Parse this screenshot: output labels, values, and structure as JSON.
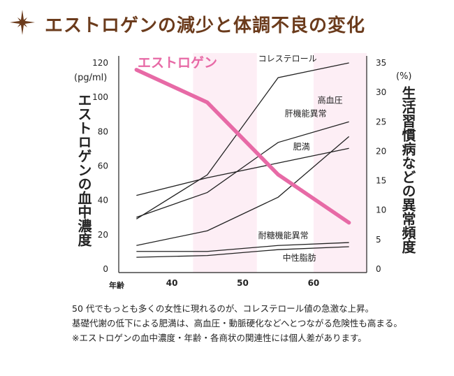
{
  "title": "エストロゲンの減少と体調不良の変化",
  "left_unit": "(pg/ml)",
  "right_unit": "(%)",
  "left_axis_label": "エストロゲンの血中濃度",
  "right_axis_label": "生活習慣病などの異常頻度",
  "notes": [
    "50 代でもっとも多くの女性に現れるのが、コレステロール値の急激な上昇。",
    "基礎代謝の低下による肥満は、高血圧・動脈硬化などへとつながる危険性も高まる。",
    "※エストロゲンの血中濃度・年齢・各商状の関連性には個人差があります。"
  ],
  "colors": {
    "title": "#6b3b1c",
    "estrogen": "#e76aa6",
    "band": "#fdeef5",
    "line": "#222222"
  },
  "chart_data": {
    "type": "line",
    "xlabel": "年齢",
    "x": [
      35,
      45,
      55,
      65
    ],
    "x_ticks": [
      "40",
      "50",
      "60"
    ],
    "x_tick_values": [
      40,
      50,
      60
    ],
    "xlim": [
      32.5,
      67.5
    ],
    "ylim_left": [
      0,
      120
    ],
    "ylim_right": [
      0,
      35
    ],
    "left_ticks": [
      "0",
      "20",
      "40",
      "60",
      "80",
      "100",
      "120"
    ],
    "right_ticks": [
      "0",
      "5",
      "10",
      "15",
      "20",
      "25",
      "30",
      "35"
    ],
    "shaded_age_ranges": [
      [
        43,
        52
      ],
      [
        60,
        67.5
      ]
    ],
    "estrogen": {
      "name": "エストロゲン",
      "axis": "left",
      "values": [
        116,
        97,
        55,
        27
      ]
    },
    "series": [
      {
        "name": "コレステロール",
        "axis": "right",
        "values": [
          8.5,
          16,
          32.5,
          35
        ]
      },
      {
        "name": "肝機能異常",
        "axis": "right",
        "values": [
          8.8,
          13,
          21.5,
          25
        ]
      },
      {
        "name": "肥満",
        "axis": "right",
        "values": [
          12.5,
          15.5,
          18,
          20.5
        ]
      },
      {
        "name": "高血圧",
        "axis": "right",
        "values": [
          4,
          6.5,
          12.2,
          22.5
        ]
      },
      {
        "name": "耐糖機能異常",
        "axis": "right",
        "values": [
          3,
          3,
          4,
          4.5
        ]
      },
      {
        "name": "中性脂肪",
        "axis": "right",
        "values": [
          2,
          2.3,
          3.3,
          3.8
        ]
      }
    ]
  }
}
